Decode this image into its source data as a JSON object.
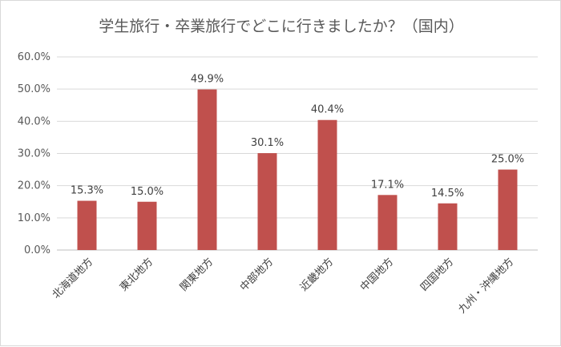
{
  "chart_data": {
    "type": "bar",
    "title": "学生旅行・卒業旅行でどこに行きましたか？（国内）",
    "categories": [
      "北海道地方",
      "東北地方",
      "関東地方",
      "中部地方",
      "近畿地方",
      "中国地方",
      "四国地方",
      "九州・沖縄地方"
    ],
    "values": [
      15.3,
      15.0,
      49.9,
      30.1,
      40.4,
      17.1,
      14.5,
      25.0
    ],
    "data_labels": [
      "15.3%",
      "15.0%",
      "49.9%",
      "30.1%",
      "40.4%",
      "17.1%",
      "14.5%",
      "25.0%"
    ],
    "y_ticks": [
      "0.0%",
      "10.0%",
      "20.0%",
      "30.0%",
      "40.0%",
      "50.0%",
      "60.0%"
    ],
    "ylim": [
      0,
      60
    ],
    "grid": true,
    "legend": "none",
    "bar_color": "#c0504d"
  }
}
